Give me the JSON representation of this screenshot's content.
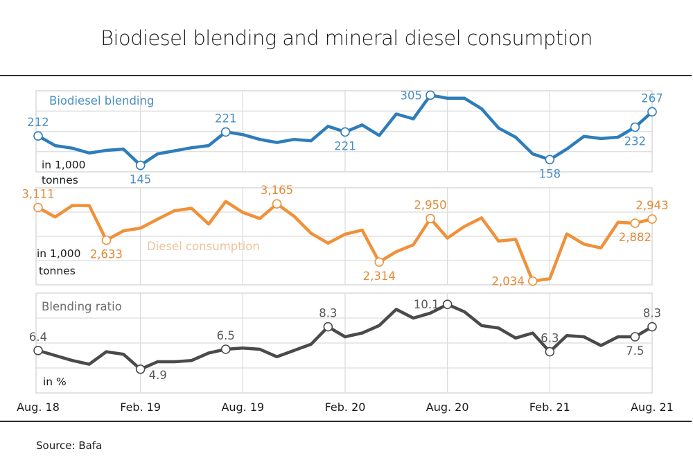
{
  "title": "Biodiesel blending and mineral diesel consumption",
  "source": "Source: Bafa",
  "chart_data": {
    "type": "line",
    "title": "Biodiesel blending and mineral diesel consumption",
    "x": [
      "Aug. 18",
      "Sep. 18",
      "Oct. 18",
      "Nov. 18",
      "Dec. 18",
      "Jan. 19",
      "Feb. 19",
      "Mar. 19",
      "Apr. 19",
      "May 19",
      "Jun. 19",
      "Jul. 19",
      "Aug. 19",
      "Sep. 19",
      "Oct. 19",
      "Nov. 19",
      "Dec. 19",
      "Jan. 20",
      "Feb. 20",
      "Mar. 20",
      "Apr. 20",
      "May 20",
      "Jun. 20",
      "Jul. 20",
      "Aug. 20",
      "Sep. 20",
      "Oct. 20",
      "Nov. 20",
      "Dec. 20",
      "Jan. 21",
      "Feb. 21",
      "Mar. 21",
      "Apr. 21",
      "May 21",
      "Jun. 21",
      "Jul. 21",
      "Aug. 21"
    ],
    "x_tick_labels": [
      "Aug. 18",
      "Feb. 19",
      "Aug. 19",
      "Feb. 20",
      "Aug. 20",
      "Feb. 21",
      "Aug. 21"
    ],
    "x_tick_indices": [
      0,
      6,
      12,
      18,
      24,
      30,
      36
    ],
    "grid": true,
    "panels": [
      {
        "name": "Biodiesel blending",
        "unit_label": [
          "in 1,000",
          "tonnes"
        ],
        "color": "#2e7dba",
        "label_color": "#4a8fc2",
        "ylim": [
          130,
          315
        ],
        "values": [
          212,
          190,
          184,
          173,
          179,
          182,
          145,
          171,
          178,
          185,
          190,
          221,
          215,
          204,
          197,
          204,
          201,
          234,
          221,
          237,
          213,
          262,
          251,
          305,
          298,
          298,
          274,
          230,
          209,
          171,
          158,
          182,
          211,
          206,
          209,
          232,
          267
        ],
        "annotations": [
          {
            "index": 0,
            "text": "212",
            "pos": "above"
          },
          {
            "index": 6,
            "text": "145",
            "pos": "below"
          },
          {
            "index": 11,
            "text": "221",
            "pos": "above"
          },
          {
            "index": 18,
            "text": "221",
            "pos": "below"
          },
          {
            "index": 23,
            "text": "305",
            "pos": "left"
          },
          {
            "index": 30,
            "text": "158",
            "pos": "below"
          },
          {
            "index": 35,
            "text": "232",
            "pos": "below"
          },
          {
            "index": 36,
            "text": "267",
            "pos": "above"
          }
        ]
      },
      {
        "name": "Diesel consumption",
        "unit_label": [
          "in 1,000",
          "tonnes"
        ],
        "color": "#f0913a",
        "label_color": "#e38a37",
        "series_label_color": "#ecc49e",
        "ylim": [
          1980,
          3400
        ],
        "values": [
          3111,
          2973,
          3140,
          3140,
          2633,
          2770,
          2810,
          2940,
          3065,
          3100,
          2870,
          3200,
          3040,
          2950,
          3165,
          2985,
          2735,
          2590,
          2720,
          2780,
          2314,
          2465,
          2565,
          2950,
          2665,
          2835,
          2960,
          2620,
          2645,
          2034,
          2070,
          2725,
          2575,
          2520,
          2895,
          2882,
          2943
        ],
        "annotations": [
          {
            "index": 0,
            "text": "3,111",
            "pos": "above"
          },
          {
            "index": 4,
            "text": "2,633",
            "pos": "below"
          },
          {
            "index": 14,
            "text": "3,165",
            "pos": "above"
          },
          {
            "index": 20,
            "text": "2,314",
            "pos": "below"
          },
          {
            "index": 23,
            "text": "2,950",
            "pos": "above"
          },
          {
            "index": 29,
            "text": "2,034",
            "pos": "left"
          },
          {
            "index": 35,
            "text": "2,882",
            "pos": "below"
          },
          {
            "index": 36,
            "text": "2,943",
            "pos": "above"
          }
        ]
      },
      {
        "name": "Blending ratio",
        "unit_label": [
          "in %"
        ],
        "color": "#4a4a4a",
        "label_color": "#595959",
        "ylim": [
          3.0,
          11.0
        ],
        "values": [
          6.4,
          6.0,
          5.6,
          5.3,
          6.3,
          6.1,
          4.9,
          5.5,
          5.5,
          5.6,
          6.2,
          6.5,
          6.6,
          6.5,
          5.9,
          6.4,
          6.9,
          8.3,
          7.5,
          7.8,
          8.4,
          9.7,
          9.0,
          9.4,
          10.1,
          9.5,
          8.4,
          8.2,
          7.4,
          7.8,
          6.3,
          7.6,
          7.5,
          6.8,
          7.5,
          7.5,
          8.3
        ],
        "annotations": [
          {
            "index": 0,
            "text": "6.4",
            "pos": "above"
          },
          {
            "index": 6,
            "text": "4.9",
            "pos": "right"
          },
          {
            "index": 11,
            "text": "6.5",
            "pos": "above"
          },
          {
            "index": 17,
            "text": "8.3",
            "pos": "above"
          },
          {
            "index": 24,
            "text": "10.1",
            "pos": "left"
          },
          {
            "index": 30,
            "text": "6.3",
            "pos": "above"
          },
          {
            "index": 35,
            "text": "7.5",
            "pos": "below"
          },
          {
            "index": 36,
            "text": "8.3",
            "pos": "above"
          }
        ]
      }
    ]
  }
}
